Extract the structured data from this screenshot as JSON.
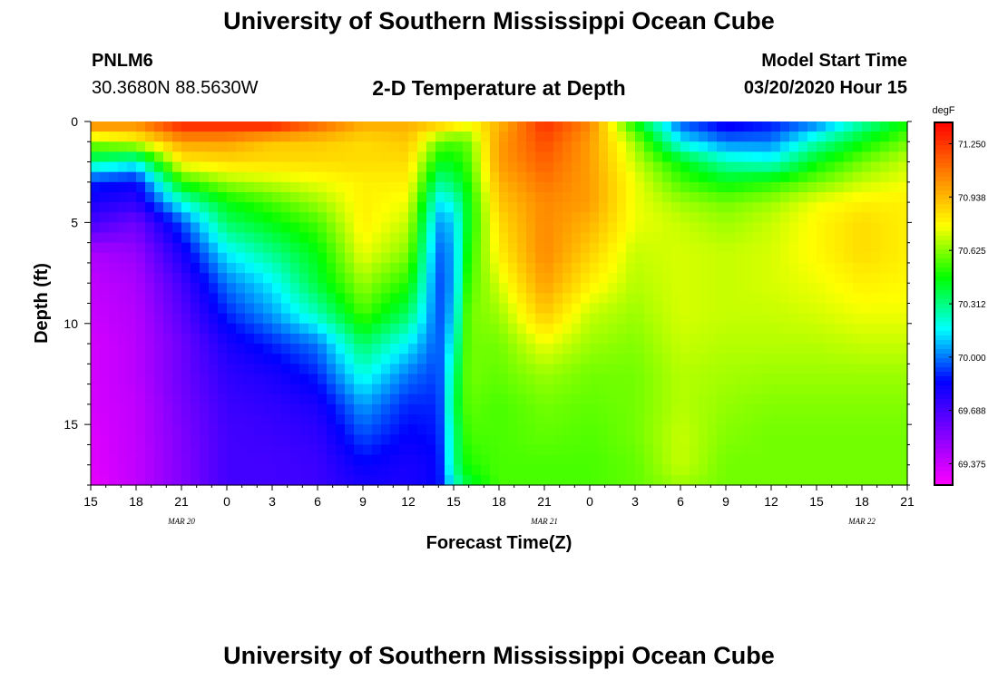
{
  "header": {
    "title": "University of Southern Mississippi Ocean Cube",
    "station_id": "PNLM6",
    "station_coords": "30.3680N 88.5630W",
    "plot_title": "2-D Temperature at Depth",
    "model_start_label": "Model Start Time",
    "model_start_value": "03/20/2020 Hour 15"
  },
  "footer": {
    "title": "University of Southern Mississippi Ocean Cube"
  },
  "chart_data": {
    "type": "heatmap",
    "title": "2-D Temperature at Depth",
    "xlabel": "Forecast Time(Z)",
    "ylabel": "Depth (ft)",
    "x_tick_labels": [
      "15",
      "18",
      "21",
      "0",
      "3",
      "6",
      "9",
      "12",
      "15",
      "18",
      "21",
      "0",
      "3",
      "6",
      "9",
      "12",
      "15",
      "18",
      "21"
    ],
    "date_labels": [
      {
        "label": "MAR 20",
        "tick_index": 2
      },
      {
        "label": "MAR 21",
        "tick_index": 10
      },
      {
        "label": "MAR 22",
        "tick_index": 17
      }
    ],
    "y_ticks": [
      0,
      5,
      10,
      15
    ],
    "ylim": [
      18,
      0
    ],
    "y_inverted": true,
    "x_range_hours": [
      0,
      54
    ],
    "colorbar": {
      "unit": "degF",
      "ticks": [
        "71.250",
        "70.938",
        "70.625",
        "70.312",
        "70.000",
        "69.688",
        "69.375"
      ],
      "range": [
        69.25,
        71.375
      ],
      "colors": [
        "#ff00ff",
        "#8000ff",
        "#0000ff",
        "#00ffff",
        "#00ff00",
        "#ffff00",
        "#ff8000",
        "#ff0000"
      ]
    },
    "profiles": {
      "depths_ft": [
        0.25,
        1,
        2,
        3,
        4,
        5,
        6.5,
        8,
        9.5,
        11,
        12.5,
        14,
        15.5,
        17,
        18
      ],
      "columns": [
        {
          "hour": 0,
          "temps": [
            71.0,
            70.65,
            70.3,
            69.9,
            69.8,
            69.7,
            69.45,
            69.4,
            69.38,
            69.35,
            69.35,
            69.35,
            69.33,
            69.32,
            69.3
          ]
        },
        {
          "hour": 3,
          "temps": [
            71.0,
            70.75,
            70.2,
            69.85,
            69.75,
            69.6,
            69.5,
            69.45,
            69.43,
            69.42,
            69.42,
            69.4,
            69.4,
            69.4,
            69.4
          ]
        },
        {
          "hour": 6,
          "temps": [
            71.25,
            71.0,
            70.8,
            70.5,
            70.2,
            69.95,
            69.8,
            69.7,
            69.65,
            69.6,
            69.6,
            69.58,
            69.56,
            69.55,
            69.55
          ]
        },
        {
          "hour": 9,
          "temps": [
            71.25,
            71.0,
            70.85,
            70.65,
            70.45,
            70.35,
            70.15,
            70.0,
            69.9,
            69.8,
            69.75,
            69.72,
            69.7,
            69.7,
            69.7
          ]
        },
        {
          "hour": 12,
          "temps": [
            71.25,
            70.9,
            70.85,
            70.7,
            70.55,
            70.45,
            70.3,
            70.15,
            70.05,
            69.9,
            69.8,
            69.75,
            69.72,
            69.7,
            69.7
          ]
        },
        {
          "hour": 15,
          "temps": [
            71.1,
            70.9,
            70.85,
            70.75,
            70.65,
            70.55,
            70.45,
            70.4,
            70.25,
            70.0,
            69.9,
            69.8,
            69.75,
            69.72,
            69.72
          ]
        },
        {
          "hour": 18,
          "temps": [
            70.95,
            70.85,
            70.85,
            70.8,
            70.8,
            70.8,
            70.75,
            70.65,
            70.55,
            70.35,
            70.2,
            70.05,
            69.95,
            69.85,
            69.8
          ]
        },
        {
          "hour": 21,
          "temps": [
            70.95,
            70.9,
            70.85,
            70.8,
            70.75,
            70.7,
            70.62,
            70.5,
            70.35,
            70.15,
            70.0,
            69.9,
            69.85,
            69.8,
            69.8
          ]
        },
        {
          "hour": 23,
          "temps": [
            70.85,
            70.6,
            70.45,
            70.3,
            70.15,
            70.05,
            69.98,
            69.95,
            69.95,
            69.95,
            69.93,
            69.9,
            69.88,
            69.85,
            69.85
          ]
        },
        {
          "hour": 24,
          "temps": [
            70.8,
            70.55,
            70.45,
            70.35,
            70.2,
            70.1,
            70.05,
            70.05,
            70.1,
            70.2,
            70.3,
            70.35,
            70.3,
            70.3,
            70.2
          ]
        },
        {
          "hour": 25,
          "temps": [
            70.75,
            70.6,
            70.55,
            70.5,
            70.45,
            70.45,
            70.5,
            70.55,
            70.6,
            70.6,
            70.6,
            70.58,
            70.55,
            70.5,
            70.4
          ]
        },
        {
          "hour": 27,
          "temps": [
            70.95,
            71.0,
            71.0,
            70.95,
            70.9,
            70.85,
            70.8,
            70.72,
            70.65,
            70.6,
            70.58,
            70.55,
            70.55,
            70.55,
            70.55
          ]
        },
        {
          "hour": 30,
          "temps": [
            71.25,
            71.2,
            71.15,
            71.1,
            71.05,
            71.05,
            71.05,
            71.0,
            70.9,
            70.75,
            70.65,
            70.6,
            70.58,
            70.55,
            70.55
          ]
        },
        {
          "hour": 33,
          "temps": [
            71.05,
            71.0,
            71.0,
            71.0,
            71.0,
            70.95,
            70.88,
            70.8,
            70.7,
            70.65,
            70.6,
            70.58,
            70.56,
            70.55,
            70.55
          ]
        },
        {
          "hour": 36,
          "temps": [
            70.5,
            70.65,
            70.7,
            70.75,
            70.75,
            70.75,
            70.7,
            70.68,
            70.65,
            70.62,
            70.6,
            70.6,
            70.6,
            70.58,
            70.58
          ]
        },
        {
          "hour": 39,
          "temps": [
            70.0,
            70.15,
            70.45,
            70.55,
            70.65,
            70.7,
            70.72,
            70.72,
            70.72,
            70.7,
            70.68,
            70.68,
            70.7,
            70.7,
            70.65
          ]
        },
        {
          "hour": 42,
          "temps": [
            69.85,
            70.0,
            70.25,
            70.45,
            70.6,
            70.65,
            70.7,
            70.7,
            70.7,
            70.68,
            70.66,
            70.64,
            70.62,
            70.6,
            70.6
          ]
        },
        {
          "hour": 45,
          "temps": [
            69.9,
            70.0,
            70.2,
            70.5,
            70.65,
            70.7,
            70.72,
            70.72,
            70.7,
            70.68,
            70.65,
            70.62,
            70.6,
            70.6,
            70.6
          ]
        },
        {
          "hour": 48,
          "temps": [
            70.05,
            70.25,
            70.45,
            70.6,
            70.75,
            70.78,
            70.78,
            70.75,
            70.72,
            70.68,
            70.65,
            70.62,
            70.6,
            70.6,
            70.6
          ]
        },
        {
          "hour": 51,
          "temps": [
            70.3,
            70.45,
            70.6,
            70.7,
            70.8,
            70.85,
            70.85,
            70.8,
            70.75,
            70.7,
            70.65,
            70.62,
            70.6,
            70.6,
            70.6
          ]
        },
        {
          "hour": 54,
          "temps": [
            70.5,
            70.6,
            70.7,
            70.75,
            70.8,
            70.8,
            70.8,
            70.78,
            70.75,
            70.7,
            70.65,
            70.62,
            70.6,
            70.6,
            70.6
          ]
        }
      ]
    }
  }
}
